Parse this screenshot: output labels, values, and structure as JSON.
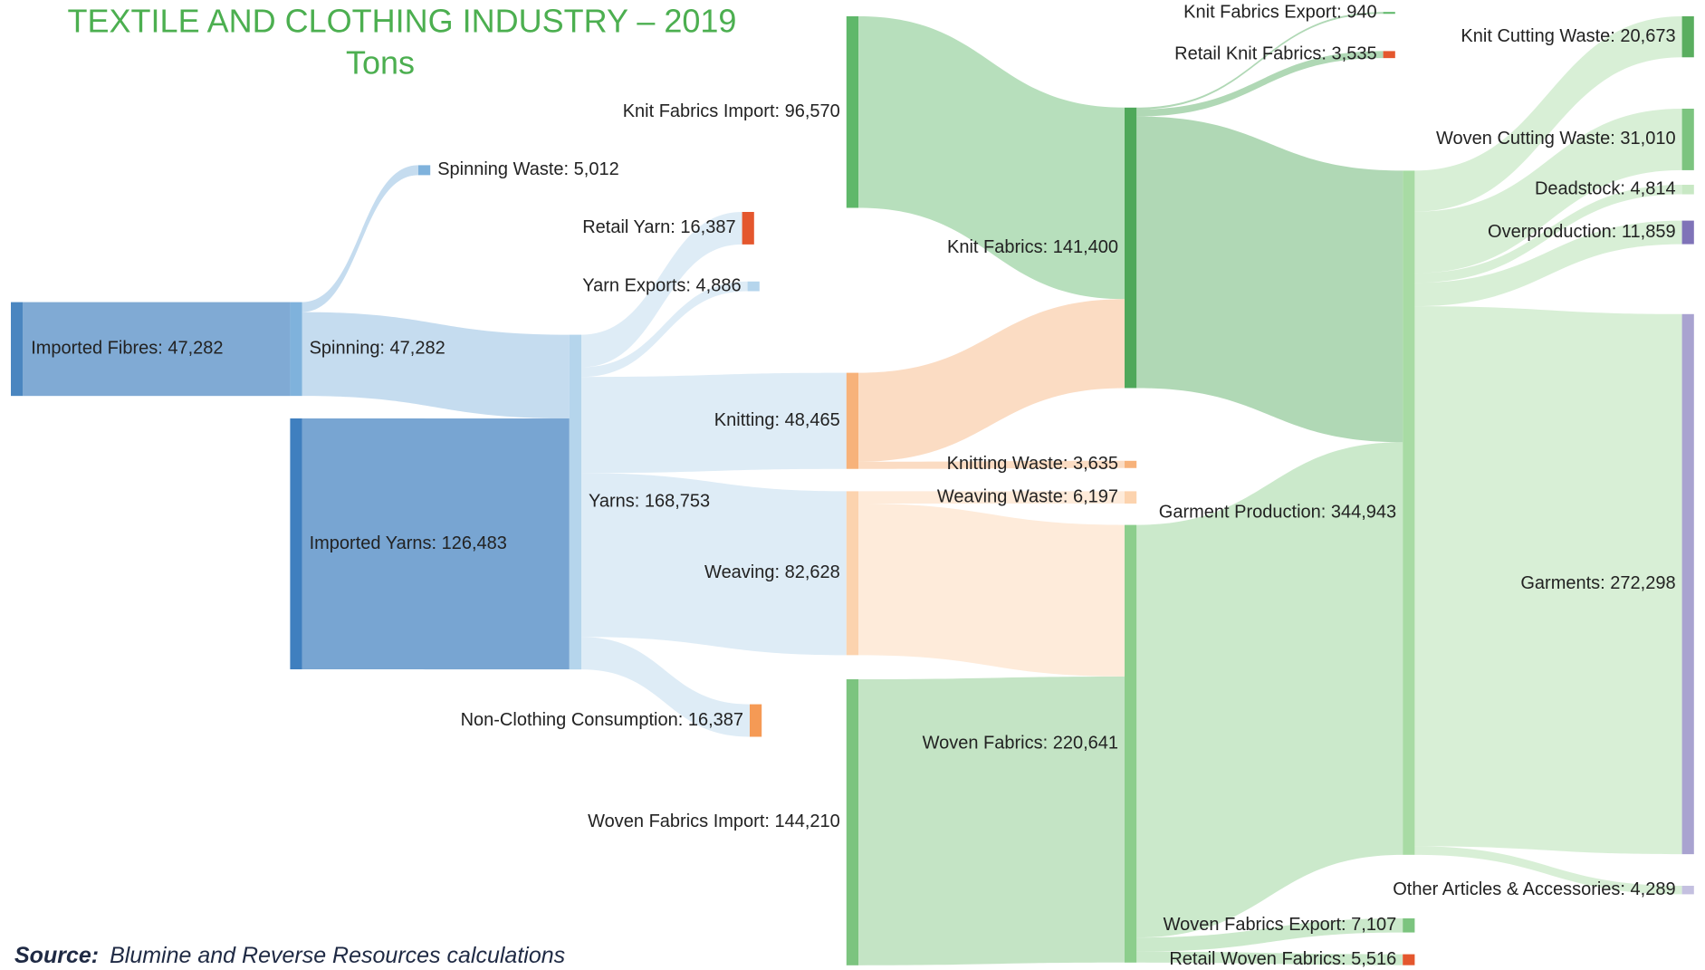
{
  "chart_data": {
    "type": "sankey",
    "title": "TEXTILE AND CLOTHING INDUSTRY – 2019",
    "subtitle": "Tons",
    "source_label": "Source:",
    "source": "Blumine and Reverse Resources calculations",
    "nodes": [
      {
        "label": "Imported Fibres: 47,282",
        "value": 47282,
        "color": "#4a86c0"
      },
      {
        "label": "Spinning: 47,282",
        "value": 47282,
        "color": "#7fb2dc"
      },
      {
        "label": "Imported Yarns: 126,483",
        "value": 126483,
        "color": "#3f7fbf"
      },
      {
        "label": "Spinning Waste: 5,012",
        "value": 5012,
        "color": "#7fb2dc"
      },
      {
        "label": "Yarns: 168,753",
        "value": 168753,
        "color": "#b5d5ec"
      },
      {
        "label": "Retail Yarn: 16,387",
        "value": 16387,
        "color": "#e4572e"
      },
      {
        "label": "Yarn Exports: 4,886",
        "value": 4886,
        "color": "#b5d5ec"
      },
      {
        "label": "Knitting: 48,465",
        "value": 48465,
        "color": "#f7b27a"
      },
      {
        "label": "Weaving: 82,628",
        "value": 82628,
        "color": "#fcd3ae"
      },
      {
        "label": "Non-Clothing Consumption: 16,387",
        "value": 16387,
        "color": "#f59a55"
      },
      {
        "label": "Knit Fabrics Import: 96,570",
        "value": 96570,
        "color": "#5fb86a"
      },
      {
        "label": "Woven Fabrics Import: 144,210",
        "value": 144210,
        "color": "#7cc47f"
      },
      {
        "label": "Knit Fabrics: 141,400",
        "value": 141400,
        "color": "#4fa85a"
      },
      {
        "label": "Knitting Waste: 3,635",
        "value": 3635,
        "color": "#f7b27a"
      },
      {
        "label": "Weaving Waste: 6,197",
        "value": 6197,
        "color": "#fcd3ae"
      },
      {
        "label": "Woven Fabrics: 220,641",
        "value": 220641,
        "color": "#8cce8c"
      },
      {
        "label": "Garment Production: 344,943",
        "value": 344943,
        "color": "#a8dba4"
      },
      {
        "label": "Knit Fabrics Export: 940",
        "value": 940,
        "color": "#5fb86a"
      },
      {
        "label": "Retail Knit Fabrics: 3,535",
        "value": 3535,
        "color": "#e4572e"
      },
      {
        "label": "Woven Fabrics Export: 7,107",
        "value": 7107,
        "color": "#7cc47f"
      },
      {
        "label": "Retail Woven Fabrics: 5,516",
        "value": 5516,
        "color": "#e4572e"
      },
      {
        "label": "Knit Cutting Waste: 20,673",
        "value": 20673,
        "color": "#5aae5f"
      },
      {
        "label": "Woven Cutting Waste: 31,010",
        "value": 31010,
        "color": "#7cc47f"
      },
      {
        "label": "Deadstock: 4,814",
        "value": 4814,
        "color": "#c8e8c4"
      },
      {
        "label": "Overproduction: 11,859",
        "value": 11859,
        "color": "#7f73b8"
      },
      {
        "label": "Garments: 272,298",
        "value": 272298,
        "color": "#a9a3d0"
      },
      {
        "label": "Other Articles & Accessories: 4,289",
        "value": 4289,
        "color": "#c4c0e0"
      }
    ],
    "links": [
      {
        "source": 0,
        "target": 1,
        "value": 47282
      },
      {
        "source": 1,
        "target": 3,
        "value": 5012
      },
      {
        "source": 1,
        "target": 4,
        "value": 42270
      },
      {
        "source": 2,
        "target": 4,
        "value": 126483
      },
      {
        "source": 4,
        "target": 5,
        "value": 16387
      },
      {
        "source": 4,
        "target": 6,
        "value": 4886
      },
      {
        "source": 4,
        "target": 7,
        "value": 48465
      },
      {
        "source": 4,
        "target": 8,
        "value": 82628
      },
      {
        "source": 4,
        "target": 9,
        "value": 16387
      },
      {
        "source": 10,
        "target": 12,
        "value": 96570
      },
      {
        "source": 7,
        "target": 12,
        "value": 44830
      },
      {
        "source": 7,
        "target": 13,
        "value": 3635
      },
      {
        "source": 8,
        "target": 14,
        "value": 6197
      },
      {
        "source": 8,
        "target": 15,
        "value": 76431
      },
      {
        "source": 11,
        "target": 15,
        "value": 144210
      },
      {
        "source": 12,
        "target": 17,
        "value": 940
      },
      {
        "source": 12,
        "target": 18,
        "value": 3535
      },
      {
        "source": 12,
        "target": 16,
        "value": 136925
      },
      {
        "source": 15,
        "target": 16,
        "value": 208018
      },
      {
        "source": 15,
        "target": 19,
        "value": 7107
      },
      {
        "source": 15,
        "target": 20,
        "value": 5516
      },
      {
        "source": 16,
        "target": 21,
        "value": 20673
      },
      {
        "source": 16,
        "target": 22,
        "value": 31010
      },
      {
        "source": 16,
        "target": 23,
        "value": 4814
      },
      {
        "source": 16,
        "target": 24,
        "value": 11859
      },
      {
        "source": 16,
        "target": 25,
        "value": 272298
      },
      {
        "source": 16,
        "target": 26,
        "value": 4289
      }
    ]
  }
}
